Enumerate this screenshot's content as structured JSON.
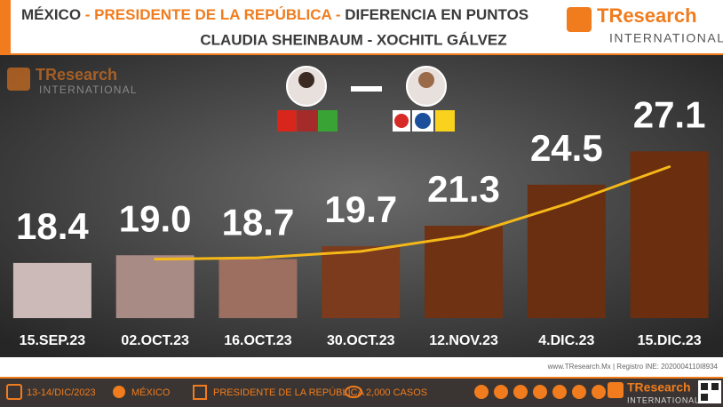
{
  "header": {
    "title_parts": [
      "MÉXICO",
      " - ",
      "PRESIDENTE DE LA REPÚBLICA",
      " - ",
      "DIFERENCIA EN PUNTOS"
    ],
    "subtitle": "CLAUDIA SHEINBAUM - XOCHITL GÁLVEZ"
  },
  "logo": {
    "brand": "TResearch",
    "tagline": "INTERNATIONAL"
  },
  "chart_data": {
    "type": "bar",
    "categories": [
      "15.SEP.23",
      "02.OCT.23",
      "16.OCT.23",
      "30.OCT.23",
      "12.NOV.23",
      "4.DIC.23",
      "15.DIC.23"
    ],
    "values": [
      18.4,
      19.0,
      18.7,
      19.7,
      21.3,
      24.5,
      27.1
    ],
    "value_labels": [
      "18.4",
      "19.0",
      "18.7",
      "19.7",
      "21.3",
      "24.5",
      "27.1"
    ],
    "colors": [
      "#cbbab8",
      "#a98b85",
      "#9c6f61",
      "#7b3b1c",
      "#6f3213",
      "#6a2f10",
      "#6b2e0e"
    ],
    "trend": {
      "color": "#f5b818",
      "values": [
        null,
        18.7,
        18.8,
        19.3,
        20.5,
        23.0,
        25.9
      ]
    },
    "ylim": [
      14.1,
      34.6
    ]
  },
  "source_line": "www.TResearch.Mx | Registro INE: 2020004110I8934",
  "footer": {
    "date": "13-14/DIC/2023",
    "place": "MÉXICO",
    "topic": "PRESIDENTE DE LA REPÚBLICA",
    "cases": "2,000 CASOS"
  }
}
